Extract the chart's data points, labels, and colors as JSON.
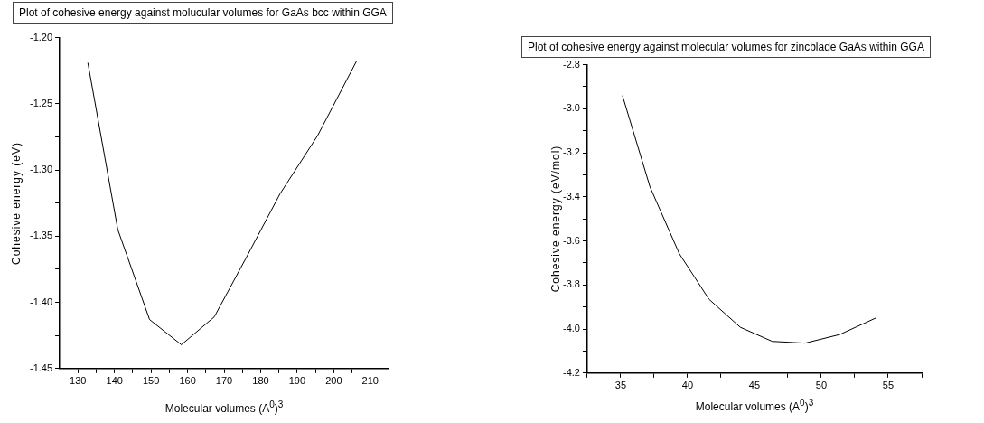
{
  "chart_data": [
    {
      "type": "line",
      "title": "Plot of cohesive energy against molucular volumes for GaAs bcc within GGA",
      "xlabel": "Molecular volumes (A$^{0}$)$^{3}$",
      "ylabel": "Cohesive energy (eV)",
      "marker": "none",
      "series": [
        {
          "color": "#000000",
          "x": [
            132.7,
            140.9,
            149.6,
            158.3,
            167.3,
            175.9,
            185.3,
            195.6,
            206.2
          ],
          "values": [
            -1.219,
            -1.345,
            -1.413,
            -1.432,
            -1.411,
            -1.367,
            -1.318,
            -1.274,
            -1.218
          ]
        }
      ],
      "xlim": [
        125,
        215
      ],
      "ylim": [
        -1.45,
        -1.2
      ],
      "xticks": [
        130,
        {
          "value": 135,
          "label": null
        },
        140,
        {
          "value": 145,
          "label": null
        },
        150,
        {
          "value": 155,
          "label": null
        },
        160,
        {
          "value": 165,
          "label": null
        },
        170,
        {
          "value": 175,
          "label": null
        },
        180,
        {
          "value": 185,
          "label": null
        },
        190,
        {
          "value": 195,
          "label": null
        },
        200,
        {
          "value": 205,
          "label": null
        },
        210,
        {
          "value": 215,
          "label": null
        }
      ],
      "yticks": [
        {
          "value": -1.45,
          "label": "-1.45"
        },
        {
          "value": -1.425,
          "label": null
        },
        {
          "value": -1.4,
          "label": "-1.40"
        },
        {
          "value": -1.375,
          "label": null
        },
        {
          "value": -1.35,
          "label": "-1.35"
        },
        {
          "value": -1.325,
          "label": null
        },
        {
          "value": -1.3,
          "label": "-1.30"
        },
        {
          "value": -1.275,
          "label": null
        },
        {
          "value": -1.25,
          "label": "-1.25"
        },
        {
          "value": -1.225,
          "label": null
        },
        {
          "value": -1.2,
          "label": "-1.20"
        }
      ]
    },
    {
      "type": "line",
      "title": "Plot of cohesive energy against molecular volumes for zincblade GaAs within GGA",
      "xlabel": "Molecular volumes (A$^{0}$)$^{3}$",
      "ylabel": "Cohesive energy (eV/mol)",
      "marker": "none",
      "series": [
        {
          "color": "#000000",
          "x": [
            35.13,
            37.19,
            39.38,
            41.6,
            43.94,
            46.33,
            48.78,
            51.37,
            54.07
          ],
          "values": [
            -2.94,
            -3.355,
            -3.658,
            -3.865,
            -3.992,
            -4.056,
            -4.064,
            -4.025,
            -3.95
          ]
        }
      ],
      "xlim": [
        32.5,
        57.5
      ],
      "ylim": [
        -4.2,
        -2.8
      ],
      "xticks": [
        {
          "value": 32.5,
          "label": null
        },
        35,
        {
          "value": 37.5,
          "label": null
        },
        40,
        {
          "value": 42.5,
          "label": null
        },
        45,
        {
          "value": 47.5,
          "label": null
        },
        50,
        {
          "value": 52.5,
          "label": null
        },
        55,
        {
          "value": 57.5,
          "label": null
        }
      ],
      "yticks": [
        -4.2,
        {
          "value": -4.1,
          "label": null
        },
        {
          "value": -4.0,
          "label": "-4.0"
        },
        {
          "value": -3.9,
          "label": null
        },
        -3.8,
        {
          "value": -3.7,
          "label": null
        },
        -3.6,
        {
          "value": -3.5,
          "label": null
        },
        -3.4,
        {
          "value": -3.3,
          "label": null
        },
        -3.2,
        {
          "value": -3.1,
          "label": null
        },
        {
          "value": -3.0,
          "label": "-3.0"
        },
        {
          "value": -2.9,
          "label": null
        },
        -2.8
      ]
    }
  ]
}
